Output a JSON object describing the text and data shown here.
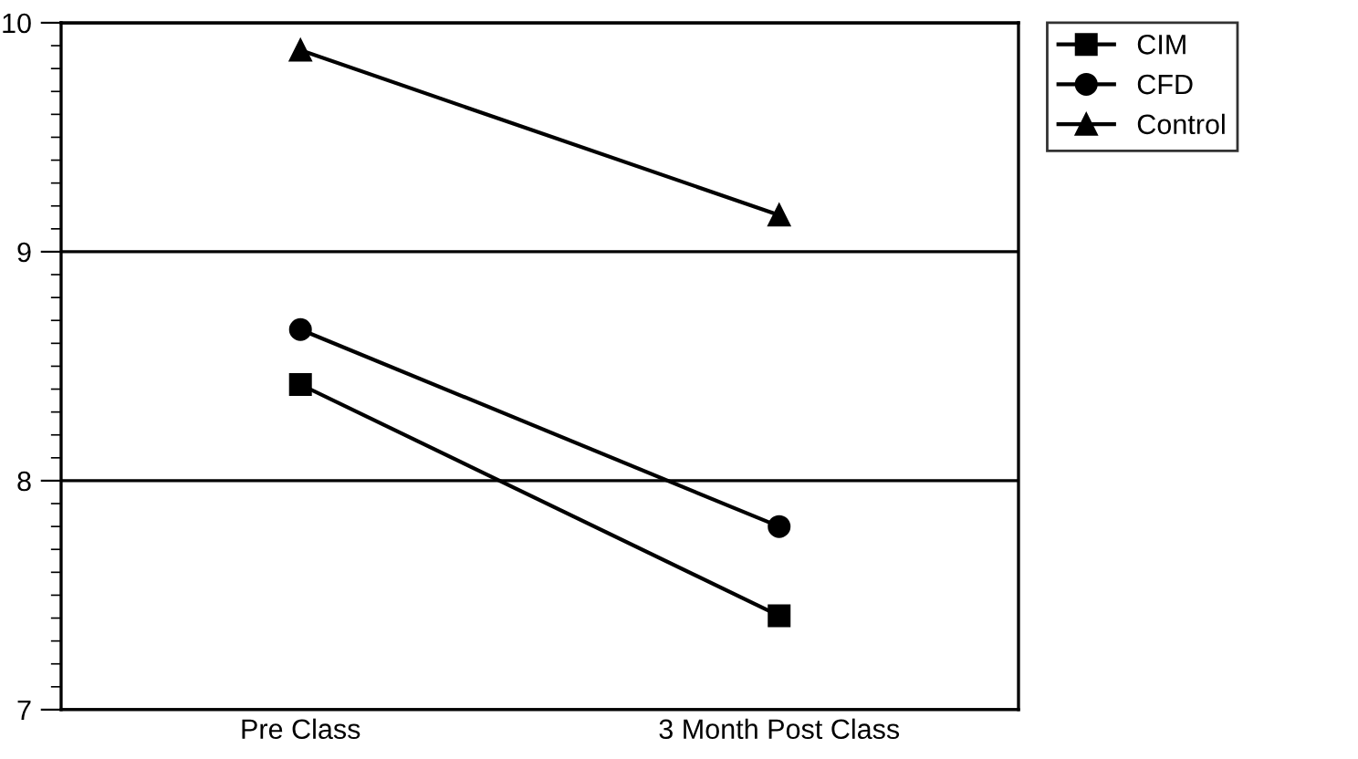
{
  "chart_data": {
    "type": "line",
    "categories": [
      "Pre Class",
      "3 Month Post Class"
    ],
    "series": [
      {
        "name": "CIM",
        "color": "#000000",
        "marker": "square",
        "values": [
          8.42,
          7.41
        ]
      },
      {
        "name": "CFD",
        "color": "#000000",
        "marker": "circle",
        "values": [
          8.66,
          7.8
        ]
      },
      {
        "name": "Control",
        "color": "#000000",
        "marker": "triangle",
        "values": [
          9.88,
          9.16
        ]
      }
    ],
    "ylim": [
      7,
      10
    ],
    "yticks": [
      7,
      8,
      9,
      10
    ],
    "grid": "y",
    "legend": "top right",
    "line_style": "solid"
  }
}
